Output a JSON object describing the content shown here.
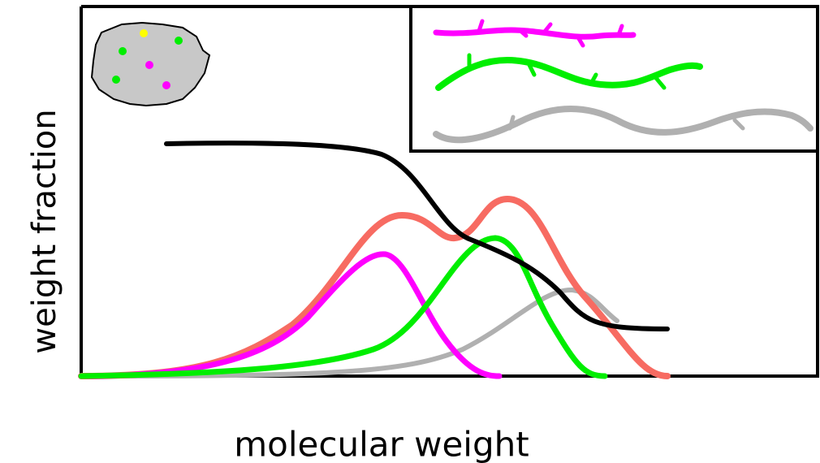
{
  "axes": {
    "y_label": "weight fraction",
    "x_label": "molecular weight"
  }
}
